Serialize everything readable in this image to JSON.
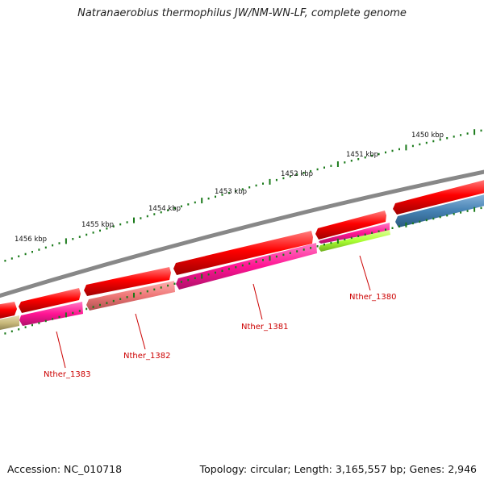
{
  "title": "Natranaerobius thermophilus JW/NM-WN-LF, complete genome",
  "footer": {
    "accession": "Accession: NC_010718",
    "summary": "Topology: circular; Length: 3,165,557 bp; Genes: 2,946"
  },
  "scale_labels": [
    "1450 kbp",
    "1451 kbp",
    "1452 kbp",
    "1453 kbp",
    "1454 kbp",
    "1455 kbp",
    "1456 kbp"
  ],
  "gene_labels": [
    "Nther_1380",
    "Nther_1381",
    "Nther_1382",
    "Nther_1383"
  ],
  "colors": {
    "backbone": "#888888",
    "forward_strand": "#ff0000",
    "magenta": "#ff1493",
    "salmon": "#ee7777",
    "green": "#aaff33",
    "olive": "#c8b87a",
    "steel_blue": "#4682b4",
    "tick": "#1a7a1a",
    "label": "#cc0000"
  }
}
